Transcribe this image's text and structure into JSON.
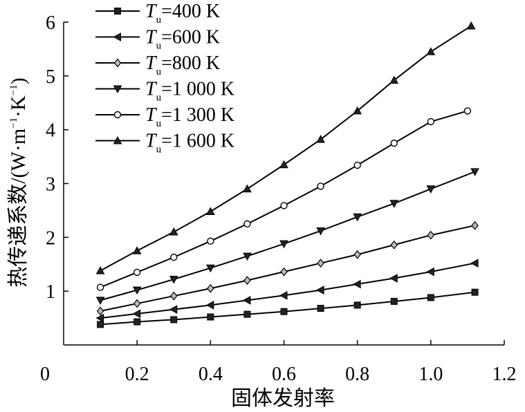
{
  "chart_data": {
    "type": "line",
    "title": "",
    "xlabel": "固体发射率",
    "ylabel": {
      "prefix": "热传递系数/(W·m",
      "sup1": "−1",
      "mid": "·K",
      "sup2": "−1",
      "suffix": ")"
    },
    "xlim": [
      0,
      1.2
    ],
    "ylim": [
      0,
      6
    ],
    "x_ticks": [
      "0",
      "0.2",
      "0.4",
      "0.6",
      "0.8",
      "1.0",
      "1.2"
    ],
    "y_ticks": [
      "1",
      "2",
      "3",
      "4",
      "5",
      "6"
    ],
    "grid": false,
    "legend_position": "top-left",
    "series": [
      {
        "name_prefix": "T",
        "name_sub": "u",
        "name_suffix": "=400 K",
        "marker": "square",
        "x": [
          0.1,
          0.2,
          0.3,
          0.4,
          0.5,
          0.6,
          0.7,
          0.8,
          0.9,
          1.0,
          1.12
        ],
        "y": [
          0.38,
          0.43,
          0.47,
          0.52,
          0.57,
          0.62,
          0.68,
          0.74,
          0.81,
          0.88,
          0.98
        ]
      },
      {
        "name_prefix": "T",
        "name_sub": "u",
        "name_suffix": "=600 K",
        "marker": "triangle-left",
        "x": [
          0.1,
          0.2,
          0.3,
          0.4,
          0.5,
          0.6,
          0.7,
          0.8,
          0.9,
          1.0,
          1.12
        ],
        "y": [
          0.5,
          0.58,
          0.66,
          0.74,
          0.83,
          0.92,
          1.02,
          1.13,
          1.24,
          1.36,
          1.52
        ]
      },
      {
        "name_prefix": "T",
        "name_sub": "u",
        "name_suffix": "=800 K",
        "marker": "diamond",
        "x": [
          0.1,
          0.2,
          0.3,
          0.4,
          0.5,
          0.6,
          0.7,
          0.8,
          0.9,
          1.0,
          1.12
        ],
        "y": [
          0.63,
          0.77,
          0.91,
          1.05,
          1.2,
          1.36,
          1.52,
          1.68,
          1.86,
          2.04,
          2.22
        ]
      },
      {
        "name_prefix": "T",
        "name_sub": "u",
        "name_suffix": "=1 000 K",
        "marker": "triangle-down",
        "x": [
          0.1,
          0.2,
          0.3,
          0.4,
          0.5,
          0.6,
          0.7,
          0.8,
          0.9,
          1.0,
          1.12
        ],
        "y": [
          0.83,
          1.02,
          1.22,
          1.43,
          1.65,
          1.88,
          2.12,
          2.38,
          2.63,
          2.9,
          3.22
        ]
      },
      {
        "name_prefix": "T",
        "name_sub": "u",
        "name_suffix": "=1 300 K",
        "marker": "circle",
        "x": [
          0.1,
          0.2,
          0.3,
          0.4,
          0.5,
          0.6,
          0.7,
          0.8,
          0.9,
          1.0,
          1.1
        ],
        "y": [
          1.07,
          1.35,
          1.63,
          1.93,
          2.25,
          2.59,
          2.95,
          3.34,
          3.75,
          4.15,
          4.35
        ]
      },
      {
        "name_prefix": "T",
        "name_sub": "u",
        "name_suffix": "=1 600 K",
        "marker": "triangle-up",
        "x": [
          0.1,
          0.2,
          0.3,
          0.4,
          0.5,
          0.6,
          0.7,
          0.8,
          0.9,
          1.0,
          1.11
        ],
        "y": [
          1.38,
          1.75,
          2.1,
          2.48,
          2.9,
          3.35,
          3.82,
          4.35,
          4.92,
          5.45,
          5.93
        ]
      }
    ]
  }
}
